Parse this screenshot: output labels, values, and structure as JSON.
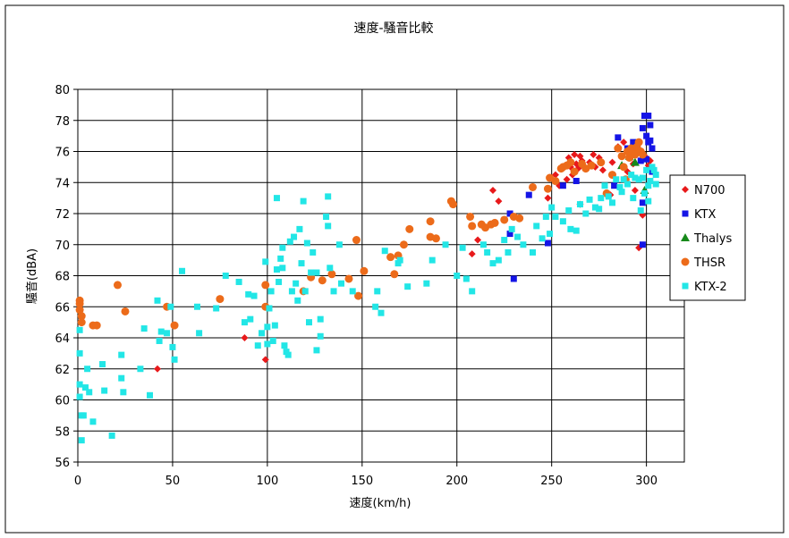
{
  "chart_data": {
    "type": "scatter",
    "title": "速度-騒音比較",
    "xlabel": "速度(km/h)",
    "ylabel": "騒音(dBA)",
    "xlim": [
      0,
      320
    ],
    "ylim": [
      56,
      80
    ],
    "xticks": [
      0,
      50,
      100,
      150,
      200,
      250,
      300
    ],
    "yticks": [
      56,
      58,
      60,
      62,
      64,
      66,
      68,
      70,
      72,
      74,
      76,
      78,
      80
    ],
    "grid": true,
    "legend_position": "right",
    "series": [
      {
        "name": "N700",
        "color": "#e8191b",
        "marker": "diamond",
        "points": [
          [
            42,
            62.0
          ],
          [
            88,
            64.0
          ],
          [
            99,
            62.6
          ],
          [
            208,
            69.4
          ],
          [
            211,
            70.3
          ],
          [
            219,
            73.5
          ],
          [
            222,
            72.8
          ],
          [
            248,
            73.0
          ],
          [
            252,
            74.5
          ],
          [
            254,
            73.8
          ],
          [
            256,
            75.0
          ],
          [
            258,
            74.2
          ],
          [
            259,
            75.6
          ],
          [
            260,
            75.0
          ],
          [
            261,
            74.5
          ],
          [
            262,
            75.8
          ],
          [
            263,
            75.2
          ],
          [
            264,
            74.9
          ],
          [
            265,
            75.7
          ],
          [
            266,
            75.4
          ],
          [
            267,
            75.0
          ],
          [
            270,
            75.3
          ],
          [
            272,
            75.8
          ],
          [
            273,
            75.0
          ],
          [
            275,
            75.6
          ],
          [
            277,
            74.8
          ],
          [
            281,
            73.2
          ],
          [
            282,
            75.3
          ],
          [
            285,
            76.3
          ],
          [
            288,
            76.6
          ],
          [
            290,
            74.7
          ],
          [
            293,
            75.2
          ],
          [
            294,
            73.5
          ],
          [
            296,
            69.8
          ],
          [
            298,
            71.9
          ],
          [
            300,
            75.6
          ],
          [
            301,
            75.1
          ],
          [
            302,
            75.4
          ],
          [
            265,
            72.6
          ]
        ]
      },
      {
        "name": "KTX",
        "color": "#1414e6",
        "marker": "square",
        "points": [
          [
            228,
            72.0
          ],
          [
            228,
            70.7
          ],
          [
            230,
            67.8
          ],
          [
            238,
            73.2
          ],
          [
            248,
            70.1
          ],
          [
            256,
            73.8
          ],
          [
            263,
            74.1
          ],
          [
            283,
            73.8
          ],
          [
            285,
            76.9
          ],
          [
            290,
            76.2
          ],
          [
            293,
            76.6
          ],
          [
            297,
            75.4
          ],
          [
            298,
            77.5
          ],
          [
            299,
            78.3
          ],
          [
            300,
            77.0
          ],
          [
            300,
            75.5
          ],
          [
            301,
            78.3
          ],
          [
            301,
            76.6
          ],
          [
            302,
            77.7
          ],
          [
            302,
            76.7
          ],
          [
            303,
            76.2
          ],
          [
            298,
            72.7
          ],
          [
            298,
            70.0
          ],
          [
            303,
            74.7
          ]
        ]
      },
      {
        "name": "Thalys",
        "color": "#17891a",
        "marker": "triangle",
        "points": [
          [
            287,
            75.1
          ],
          [
            291,
            75.7
          ],
          [
            294,
            75.3
          ],
          [
            299,
            73.5
          ]
        ]
      },
      {
        "name": "THSR",
        "color": "#ec6b1a",
        "marker": "circle",
        "points": [
          [
            1,
            66.4
          ],
          [
            1,
            66.2
          ],
          [
            1,
            65.8
          ],
          [
            2,
            65.4
          ],
          [
            2,
            65.0
          ],
          [
            8,
            64.8
          ],
          [
            10,
            64.8
          ],
          [
            21,
            67.4
          ],
          [
            25,
            65.7
          ],
          [
            47,
            66.0
          ],
          [
            51,
            64.8
          ],
          [
            75,
            66.5
          ],
          [
            99,
            67.4
          ],
          [
            99,
            66.0
          ],
          [
            119,
            67.0
          ],
          [
            123,
            67.9
          ],
          [
            129,
            67.7
          ],
          [
            134,
            68.1
          ],
          [
            143,
            67.8
          ],
          [
            147,
            70.3
          ],
          [
            148,
            66.7
          ],
          [
            151,
            68.3
          ],
          [
            165,
            69.2
          ],
          [
            167,
            68.1
          ],
          [
            169,
            69.3
          ],
          [
            172,
            70.0
          ],
          [
            175,
            71.0
          ],
          [
            186,
            71.5
          ],
          [
            186,
            70.5
          ],
          [
            189,
            70.4
          ],
          [
            197,
            72.8
          ],
          [
            198,
            72.6
          ],
          [
            207,
            71.8
          ],
          [
            208,
            71.2
          ],
          [
            213,
            71.3
          ],
          [
            215,
            71.1
          ],
          [
            218,
            71.3
          ],
          [
            220,
            71.4
          ],
          [
            225,
            71.6
          ],
          [
            230,
            71.8
          ],
          [
            233,
            71.7
          ],
          [
            240,
            73.7
          ],
          [
            248,
            73.6
          ],
          [
            249,
            74.3
          ],
          [
            252,
            74.1
          ],
          [
            255,
            74.9
          ],
          [
            256,
            75.0
          ],
          [
            258,
            75.1
          ],
          [
            260,
            75.3
          ],
          [
            262,
            74.7
          ],
          [
            266,
            75.2
          ],
          [
            268,
            74.9
          ],
          [
            271,
            75.1
          ],
          [
            276,
            75.3
          ],
          [
            279,
            73.3
          ],
          [
            282,
            74.5
          ],
          [
            285,
            76.2
          ],
          [
            287,
            75.7
          ],
          [
            288,
            75.0
          ],
          [
            289,
            74.2
          ],
          [
            290,
            76.0
          ],
          [
            291,
            75.6
          ],
          [
            292,
            76.2
          ],
          [
            293,
            76.0
          ],
          [
            294,
            75.8
          ],
          [
            295,
            76.3
          ],
          [
            296,
            76.6
          ],
          [
            297,
            76.0
          ],
          [
            298,
            75.8
          ]
        ]
      },
      {
        "name": "KTX-2",
        "color": "#22e6e6",
        "marker": "square",
        "points": [
          [
            1,
            64.5
          ],
          [
            1,
            63.0
          ],
          [
            1,
            61.0
          ],
          [
            1,
            60.2
          ],
          [
            2,
            59.0
          ],
          [
            2,
            57.4
          ],
          [
            3,
            59.0
          ],
          [
            4,
            60.8
          ],
          [
            5,
            62.0
          ],
          [
            6,
            60.5
          ],
          [
            8,
            58.6
          ],
          [
            13,
            62.3
          ],
          [
            14,
            60.6
          ],
          [
            18,
            57.7
          ],
          [
            23,
            61.4
          ],
          [
            23,
            62.9
          ],
          [
            24,
            60.5
          ],
          [
            33,
            62.0
          ],
          [
            35,
            64.6
          ],
          [
            38,
            60.3
          ],
          [
            42,
            66.4
          ],
          [
            43,
            63.8
          ],
          [
            44,
            64.4
          ],
          [
            47,
            64.3
          ],
          [
            49,
            66.0
          ],
          [
            50,
            63.4
          ],
          [
            51,
            62.6
          ],
          [
            55,
            68.3
          ],
          [
            63,
            66.0
          ],
          [
            64,
            64.3
          ],
          [
            73,
            65.9
          ],
          [
            78,
            68.0
          ],
          [
            85,
            67.6
          ],
          [
            88,
            65.0
          ],
          [
            90,
            66.8
          ],
          [
            91,
            65.2
          ],
          [
            93,
            66.7
          ],
          [
            95,
            63.5
          ],
          [
            97,
            64.3
          ],
          [
            99,
            68.9
          ],
          [
            100,
            63.6
          ],
          [
            100,
            64.7
          ],
          [
            101,
            65.9
          ],
          [
            102,
            67.0
          ],
          [
            103,
            63.8
          ],
          [
            104,
            64.8
          ],
          [
            105,
            73.0
          ],
          [
            105,
            68.4
          ],
          [
            106,
            67.6
          ],
          [
            107,
            69.1
          ],
          [
            108,
            69.8
          ],
          [
            108,
            68.5
          ],
          [
            109,
            63.5
          ],
          [
            110,
            63.1
          ],
          [
            111,
            62.9
          ],
          [
            112,
            70.2
          ],
          [
            113,
            67.0
          ],
          [
            114,
            70.5
          ],
          [
            115,
            67.5
          ],
          [
            116,
            66.4
          ],
          [
            117,
            71.0
          ],
          [
            118,
            68.8
          ],
          [
            119,
            72.8
          ],
          [
            120,
            67.0
          ],
          [
            121,
            70.1
          ],
          [
            122,
            65.0
          ],
          [
            123,
            68.2
          ],
          [
            124,
            69.5
          ],
          [
            126,
            68.2
          ],
          [
            126,
            63.2
          ],
          [
            128,
            65.2
          ],
          [
            128,
            64.1
          ],
          [
            131,
            71.8
          ],
          [
            132,
            73.1
          ],
          [
            132,
            71.2
          ],
          [
            133,
            68.5
          ],
          [
            135,
            67.0
          ],
          [
            138,
            70.0
          ],
          [
            139,
            67.5
          ],
          [
            145,
            67.0
          ],
          [
            157,
            66.0
          ],
          [
            158,
            67.0
          ],
          [
            160,
            65.6
          ],
          [
            162,
            69.6
          ],
          [
            169,
            68.8
          ],
          [
            170,
            69.0
          ],
          [
            174,
            67.3
          ],
          [
            184,
            67.5
          ],
          [
            187,
            69.0
          ],
          [
            194,
            70.0
          ],
          [
            200,
            68.0
          ],
          [
            203,
            69.8
          ],
          [
            205,
            67.8
          ],
          [
            208,
            67.0
          ],
          [
            214,
            70.0
          ],
          [
            216,
            69.5
          ],
          [
            219,
            68.8
          ],
          [
            222,
            69.0
          ],
          [
            225,
            70.3
          ],
          [
            227,
            69.5
          ],
          [
            229,
            71.0
          ],
          [
            232,
            70.5
          ],
          [
            235,
            70.0
          ],
          [
            240,
            69.5
          ],
          [
            242,
            71.2
          ],
          [
            245,
            70.4
          ],
          [
            247,
            71.8
          ],
          [
            249,
            70.7
          ],
          [
            250,
            72.4
          ],
          [
            252,
            71.8
          ],
          [
            256,
            71.5
          ],
          [
            259,
            72.2
          ],
          [
            260,
            71.0
          ],
          [
            263,
            70.9
          ],
          [
            265,
            72.6
          ],
          [
            268,
            72.0
          ],
          [
            270,
            72.9
          ],
          [
            273,
            72.4
          ],
          [
            275,
            72.3
          ],
          [
            276,
            73.0
          ],
          [
            278,
            73.8
          ],
          [
            280,
            73.1
          ],
          [
            282,
            72.7
          ],
          [
            284,
            74.2
          ],
          [
            286,
            73.7
          ],
          [
            288,
            74.2
          ],
          [
            290,
            73.9
          ],
          [
            292,
            74.5
          ],
          [
            294,
            74.3
          ],
          [
            296,
            74.2
          ],
          [
            298,
            74.3
          ],
          [
            299,
            73.3
          ],
          [
            300,
            74.8
          ],
          [
            301,
            73.8
          ],
          [
            302,
            74.1
          ],
          [
            303,
            75.0
          ],
          [
            304,
            74.8
          ],
          [
            305,
            73.9
          ],
          [
            305,
            74.5
          ],
          [
            301,
            72.8
          ],
          [
            297,
            72.2
          ],
          [
            293,
            73.0
          ],
          [
            287,
            73.4
          ]
        ]
      }
    ]
  }
}
